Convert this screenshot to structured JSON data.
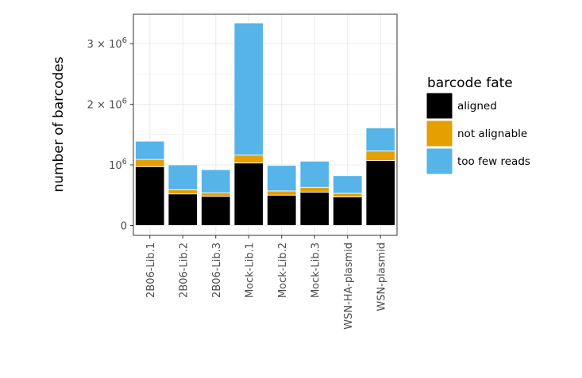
{
  "chart_data": {
    "type": "bar",
    "stacked": true,
    "categories": [
      "2B06-Lib.1",
      "2B06-Lib.2",
      "2B06-Lib.3",
      "Mock-Lib.1",
      "Mock-Lib.2",
      "Mock-Lib.3",
      "WSN-HA-plasmid",
      "WSN-plasmid"
    ],
    "series": [
      {
        "name": "aligned",
        "color": "#000000",
        "values": [
          970000,
          520000,
          480000,
          1030000,
          500000,
          550000,
          470000,
          1070000
        ]
      },
      {
        "name": "not alignable",
        "color": "#E69F00",
        "values": [
          120000,
          70000,
          60000,
          130000,
          70000,
          80000,
          60000,
          160000
        ]
      },
      {
        "name": "too few reads",
        "color": "#56B4E9",
        "values": [
          300000,
          410000,
          380000,
          2180000,
          420000,
          430000,
          290000,
          380000
        ]
      }
    ],
    "ylabel": "number of barcodes",
    "xlabel": "",
    "ylim": [
      0,
      3500000
    ],
    "yticks": [
      {
        "value": 0,
        "label": "0"
      },
      {
        "value": 1000000,
        "label": "10",
        "exp": "6"
      },
      {
        "value": 2000000,
        "label": "2 × 10",
        "exp": "6"
      },
      {
        "value": 3000000,
        "label": "3 × 10",
        "exp": "6"
      }
    ],
    "grid": true,
    "legend": {
      "title": "barcode fate",
      "position": "right"
    }
  }
}
